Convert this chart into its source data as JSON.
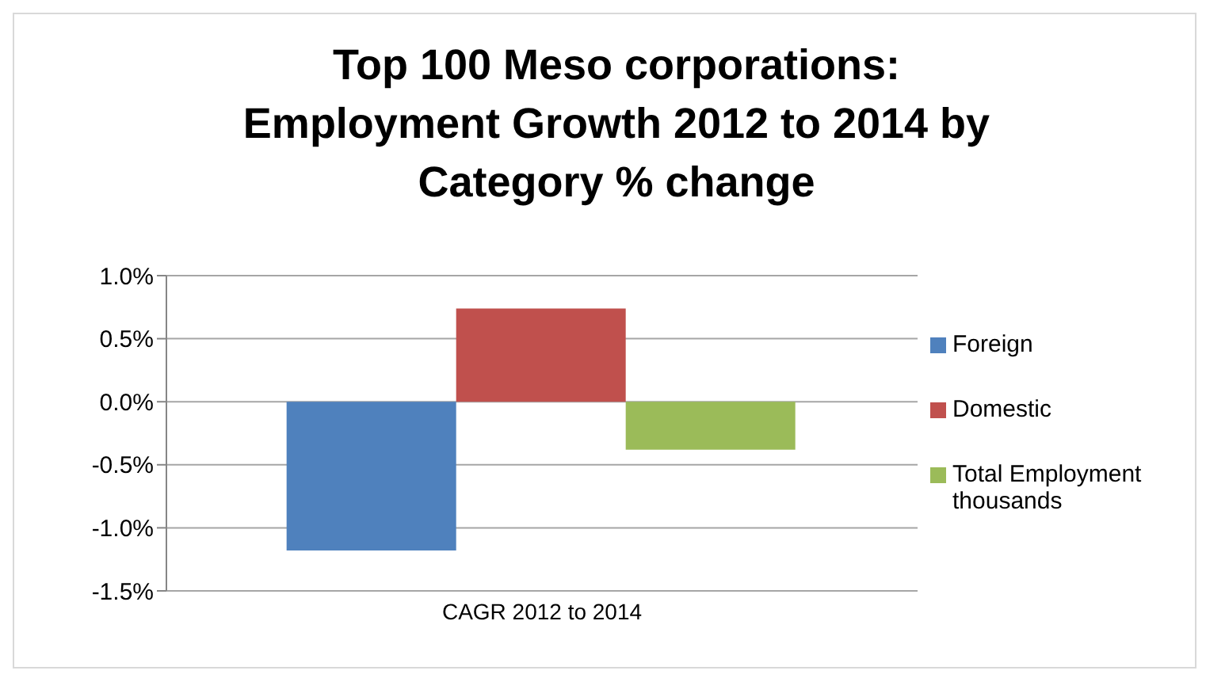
{
  "chart_data": {
    "type": "bar",
    "title": "Top 100 Meso corporations: Employment Growth 2012 to 2014 by Category % change",
    "categories": [
      "CAGR  2012 to 2014"
    ],
    "series": [
      {
        "name": "Foreign",
        "color": "#4f81bd",
        "values": [
          -1.18
        ]
      },
      {
        "name": "Domestic",
        "color": "#c0504d",
        "values": [
          0.74
        ]
      },
      {
        "name": "Total Employment thousands",
        "color": "#9bbb59",
        "values": [
          -0.38
        ]
      }
    ],
    "ylim": [
      -1.5,
      1
    ],
    "yticks": [
      {
        "value": 1,
        "label": "1.0%"
      },
      {
        "value": 0.5,
        "label": "0.5%"
      },
      {
        "value": 0,
        "label": "0.0%"
      },
      {
        "value": -0.5,
        "label": "-0.5%"
      },
      {
        "value": -1,
        "label": "-1.0%"
      },
      {
        "value": -1.5,
        "label": "-1.5%"
      }
    ],
    "grid": "y",
    "legend": "right"
  }
}
